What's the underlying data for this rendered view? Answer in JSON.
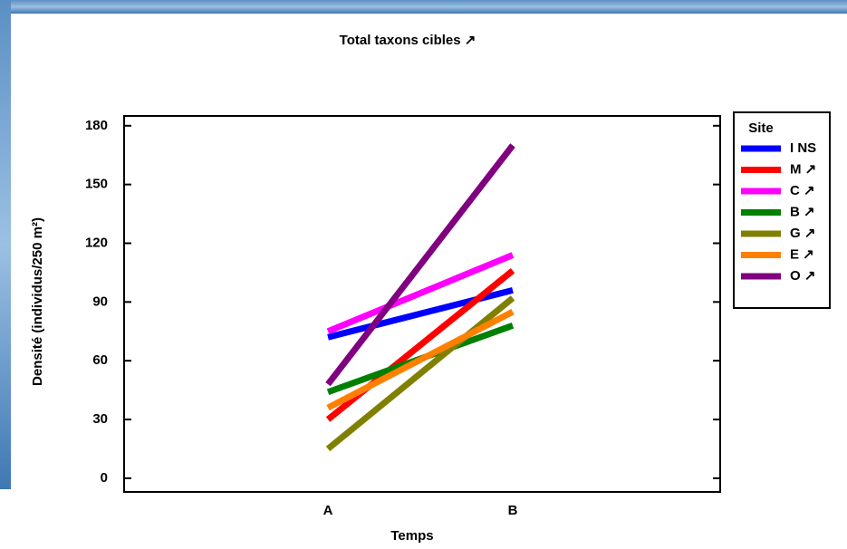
{
  "chart_data": {
    "type": "line",
    "title": "Total taxons cibles ↗",
    "x_label": "Temps",
    "y_label": "Densité (individus/250 m²)",
    "categories": [
      "A",
      "B"
    ],
    "series": [
      {
        "name": "I NS",
        "color": "#0000ff",
        "values": [
          72,
          96
        ]
      },
      {
        "name": "M ↗",
        "color": "#ff0000",
        "values": [
          30,
          106
        ]
      },
      {
        "name": "C ↗",
        "color": "#ff00ff",
        "values": [
          75,
          114
        ]
      },
      {
        "name": "B ↗",
        "color": "#008000",
        "values": [
          44,
          78
        ]
      },
      {
        "name": "G ↗",
        "color": "#808000",
        "values": [
          15,
          92
        ]
      },
      {
        "name": "E ↗",
        "color": "#ff8000",
        "values": [
          36,
          85
        ]
      },
      {
        "name": "O ↗",
        "color": "#800080",
        "values": [
          48,
          170
        ]
      }
    ],
    "legend_title": "Site",
    "legend": "right",
    "ylim": [
      -7,
      185
    ],
    "yticks": [
      0,
      30,
      60,
      90,
      120,
      150,
      180
    ]
  }
}
